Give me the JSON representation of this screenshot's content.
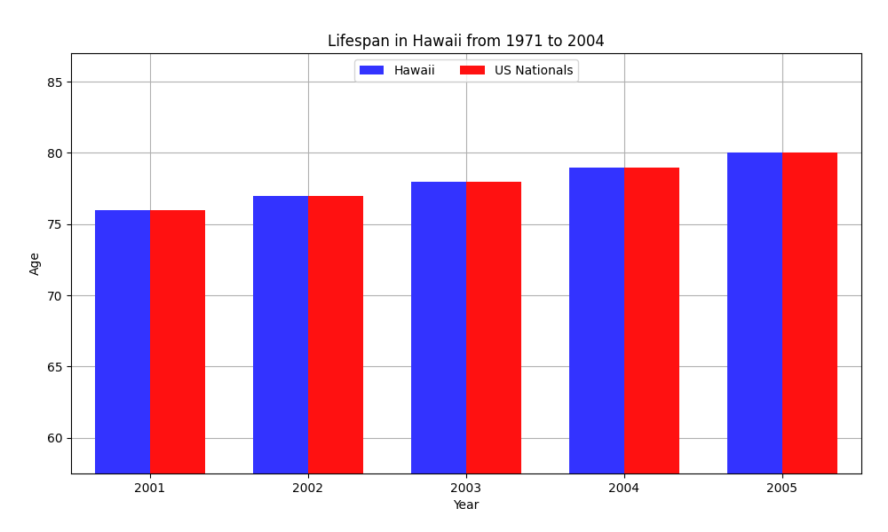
{
  "chart_data": {
    "type": "bar",
    "title": "Lifespan in Hawaii from 1971 to 2004",
    "x_label": "Year",
    "y_label": "Age",
    "categories": [
      "2001",
      "2002",
      "2003",
      "2004",
      "2005"
    ],
    "series": [
      {
        "name": "Hawaii",
        "color": "#3333ff",
        "values": [
          76,
          77,
          78,
          79,
          80
        ]
      },
      {
        "name": "US Nationals",
        "color": "#ff1111",
        "values": [
          76,
          77,
          78,
          79,
          80
        ]
      }
    ],
    "ylim": [
      57.5,
      87
    ],
    "yticks": [
      60,
      65,
      70,
      75,
      80,
      85
    ],
    "grid": true,
    "legend": "upper center"
  }
}
